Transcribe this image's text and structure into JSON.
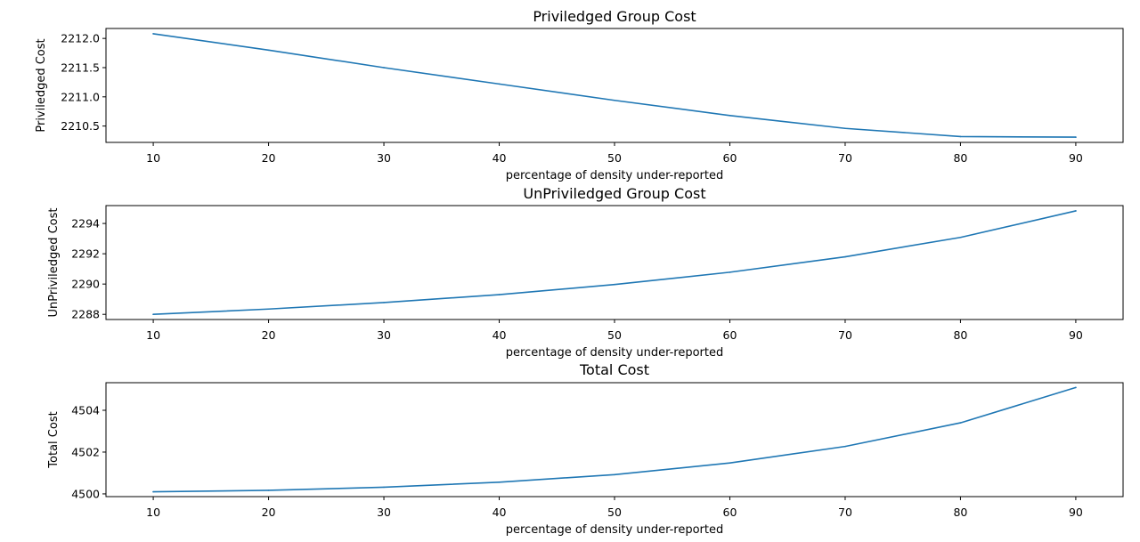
{
  "colors": {
    "series": "#1f77b4"
  },
  "chart_data": [
    {
      "type": "line",
      "title": "Priviledged Group Cost",
      "xlabel": "percentage of density under-reported",
      "ylabel": "Priviledged Cost",
      "x": [
        10,
        20,
        30,
        40,
        50,
        60,
        70,
        80,
        90
      ],
      "y": [
        2212.08,
        2211.8,
        2211.5,
        2211.22,
        2210.94,
        2210.68,
        2210.46,
        2210.32,
        2210.31
      ],
      "xticks": [
        10,
        20,
        30,
        40,
        50,
        60,
        70,
        80,
        90
      ],
      "yticks": [
        2210.5,
        2211.0,
        2211.5,
        2212.0
      ],
      "ytick_labels": [
        "2210.5",
        "2211.0",
        "2211.5",
        "2212.0"
      ],
      "xlim": [
        5.9,
        94.1
      ],
      "ylim": [
        2210.22,
        2212.17
      ],
      "grid": false,
      "legend": "none"
    },
    {
      "type": "line",
      "title": "UnPriviledged Group Cost",
      "xlabel": "percentage of density under-reported",
      "ylabel": "UnPriviledged Cost",
      "x": [
        10,
        20,
        30,
        40,
        50,
        60,
        70,
        80,
        90
      ],
      "y": [
        2288.0,
        2288.35,
        2288.78,
        2289.3,
        2289.97,
        2290.78,
        2291.8,
        2293.08,
        2294.83
      ],
      "xticks": [
        10,
        20,
        30,
        40,
        50,
        60,
        70,
        80,
        90
      ],
      "yticks": [
        2288,
        2290,
        2292,
        2294
      ],
      "ytick_labels": [
        "2288",
        "2290",
        "2292",
        "2294"
      ],
      "xlim": [
        5.9,
        94.1
      ],
      "ylim": [
        2287.66,
        2295.18
      ],
      "grid": false,
      "legend": "none"
    },
    {
      "type": "line",
      "title": "Total Cost",
      "xlabel": "percentage of density under-reported",
      "ylabel": "Total Cost",
      "x": [
        10,
        20,
        30,
        40,
        50,
        60,
        70,
        80,
        90
      ],
      "y": [
        4500.1,
        4500.17,
        4500.32,
        4500.56,
        4500.92,
        4501.48,
        4502.27,
        4503.4,
        4505.09
      ],
      "xticks": [
        10,
        20,
        30,
        40,
        50,
        60,
        70,
        80,
        90
      ],
      "yticks": [
        4500,
        4502,
        4504
      ],
      "ytick_labels": [
        "4500",
        "4502",
        "4504"
      ],
      "xlim": [
        5.9,
        94.1
      ],
      "ylim": [
        4499.87,
        4505.32
      ],
      "grid": false,
      "legend": "none"
    }
  ]
}
